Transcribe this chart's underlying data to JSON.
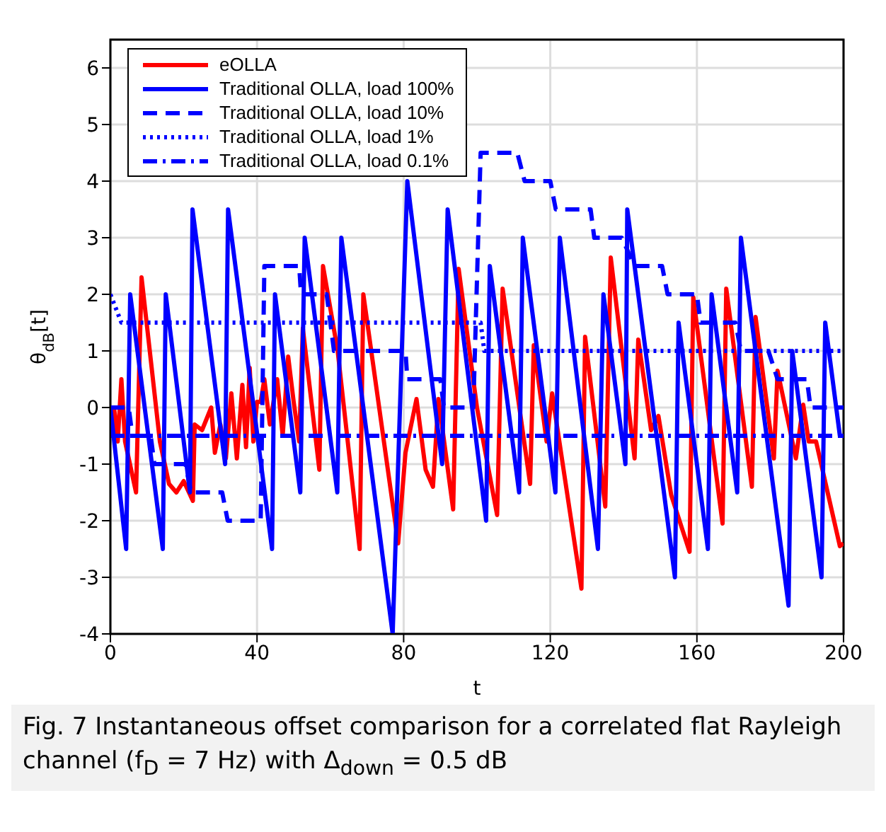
{
  "chart_data": {
    "type": "line",
    "xlabel": "t",
    "ylabel": "θ$_{dB}$[t]",
    "xlim": [
      0,
      200
    ],
    "ylim": [
      -4,
      6.5
    ],
    "xticks": [
      0,
      40,
      80,
      120,
      160,
      200
    ],
    "yticks": [
      -4,
      -3,
      -2,
      -1,
      0,
      1,
      2,
      3,
      4,
      5,
      6
    ],
    "grid": true,
    "legend": "top left",
    "marker": "none",
    "annotations": [
      "Fig. 7 Instantaneous offset comparison for a correlated flat Rayleigh channel (f$_{D}$ = 7 Hz) with Δ$_{down}$ = 0.5 dB"
    ],
    "series": [
      {
        "name": "eOLLA",
        "color": "#ff0000",
        "line_style": "solid",
        "x": [
          0,
          1,
          2,
          3,
          4,
          7,
          8.5,
          13.5,
          16,
          18,
          20,
          22.5,
          23,
          25,
          27.5,
          28.5,
          30,
          31.5,
          33,
          34.5,
          36,
          37,
          38,
          39,
          40,
          41,
          42,
          43.5,
          45.5,
          47,
          48.5,
          50,
          51.5,
          52.5,
          57,
          58,
          62,
          68,
          69,
          78.5,
          80.5,
          83.5,
          86,
          88,
          89.5,
          93.5,
          95,
          100,
          105.5,
          107,
          114.5,
          115.5,
          119,
          120.5,
          128.5,
          129.5,
          135,
          136.5,
          143,
          144,
          147.5,
          149.5,
          153,
          158,
          159,
          167,
          168,
          175,
          176,
          181,
          182,
          187,
          189,
          190.5,
          192.5,
          199,
          200
        ],
        "values": [
          -0.2,
          0,
          -0.6,
          0.5,
          -0.6,
          -1.5,
          2.3,
          -0.6,
          -1.35,
          -1.5,
          -1.3,
          -1.65,
          -0.3,
          -0.4,
          0,
          -0.8,
          -0.3,
          -0.9,
          0.25,
          -0.9,
          0.4,
          -0.7,
          0.7,
          -0.6,
          0.1,
          0.1,
          0.5,
          -0.3,
          0.5,
          -0.5,
          0.9,
          0.1,
          -0.6,
          1.4,
          -1.1,
          2.5,
          1,
          -2.5,
          2,
          -2.4,
          -0.8,
          0.15,
          -1.1,
          -1.4,
          0.15,
          -1.8,
          2.45,
          0,
          -1.9,
          2.1,
          -1.35,
          1.1,
          -0.6,
          0.25,
          -3.2,
          1.25,
          -1.75,
          2.65,
          -0.9,
          1.2,
          -0.4,
          -0.15,
          -1.55,
          -2.55,
          1.95,
          -2.05,
          2.1,
          -1.4,
          1.6,
          -0.9,
          0.65,
          -0.9,
          0.05,
          -0.6,
          -0.6,
          -2.45,
          -2.4
        ]
      },
      {
        "name": "Traditional OLLA, load 100%",
        "color": "#0000ff",
        "line_style": "solid",
        "x": [
          0,
          4.3,
          5.4,
          14.3,
          15.1,
          21.7,
          22.4,
          31.3,
          32.1,
          44.1,
          44.9,
          51.8,
          53,
          61.9,
          63,
          77,
          81,
          90.5,
          92,
          102.5,
          103.5,
          111.5,
          112.5,
          121.4,
          122.6,
          133,
          134.5,
          140.5,
          141,
          154,
          155,
          163,
          164,
          171,
          172,
          185,
          186,
          194,
          195,
          199,
          200
        ],
        "values": [
          0,
          -2.5,
          2,
          -2.5,
          2,
          -1.5,
          3.5,
          -1,
          3.5,
          -2.5,
          2,
          -1.5,
          3,
          -1.5,
          3,
          -4,
          4,
          -1,
          3.5,
          -2,
          2.5,
          -1.5,
          3,
          -1.5,
          3,
          -2.5,
          2,
          -1,
          3.5,
          -3,
          1.5,
          -2.5,
          2,
          -1.5,
          3,
          -3.5,
          1,
          -3,
          1.5,
          -0.5,
          -0.5
        ]
      },
      {
        "name": "Traditional OLLA, load 10%",
        "color": "#0000ff",
        "line_style": "dashed",
        "x": [
          0,
          5,
          6,
          11,
          12,
          20.5,
          22,
          30.5,
          32,
          41,
          42,
          51.5,
          52,
          59,
          61,
          72,
          80.5,
          81,
          90,
          91,
          99,
          101,
          111,
          113,
          120,
          121.5,
          131,
          132,
          139.5,
          143,
          150.5,
          152,
          160,
          161,
          170.5,
          172,
          179.5,
          182,
          190,
          191,
          200
        ],
        "values": [
          0,
          0,
          -0.5,
          -0.5,
          -1,
          -1,
          -1.5,
          -1.5,
          -2,
          -2,
          2.5,
          2.5,
          2,
          2,
          1,
          1,
          1,
          0.5,
          0.5,
          0,
          0,
          4.5,
          4.5,
          4,
          4,
          3.5,
          3.5,
          3,
          3,
          2.5,
          2.5,
          2,
          2,
          1.5,
          1.5,
          1,
          1,
          0.5,
          0.5,
          0,
          0
        ]
      },
      {
        "name": "Traditional OLLA, load 1%",
        "color": "#0000ff",
        "line_style": "dotted",
        "x": [
          0,
          3,
          101,
          102,
          200
        ],
        "values": [
          2,
          1.5,
          1.5,
          1,
          1
        ]
      },
      {
        "name": "Traditional OLLA, load 0.1%",
        "color": "#0000ff",
        "line_style": "dashdot",
        "x": [
          0,
          200
        ],
        "values": [
          -0.5,
          -0.5
        ]
      }
    ]
  }
}
